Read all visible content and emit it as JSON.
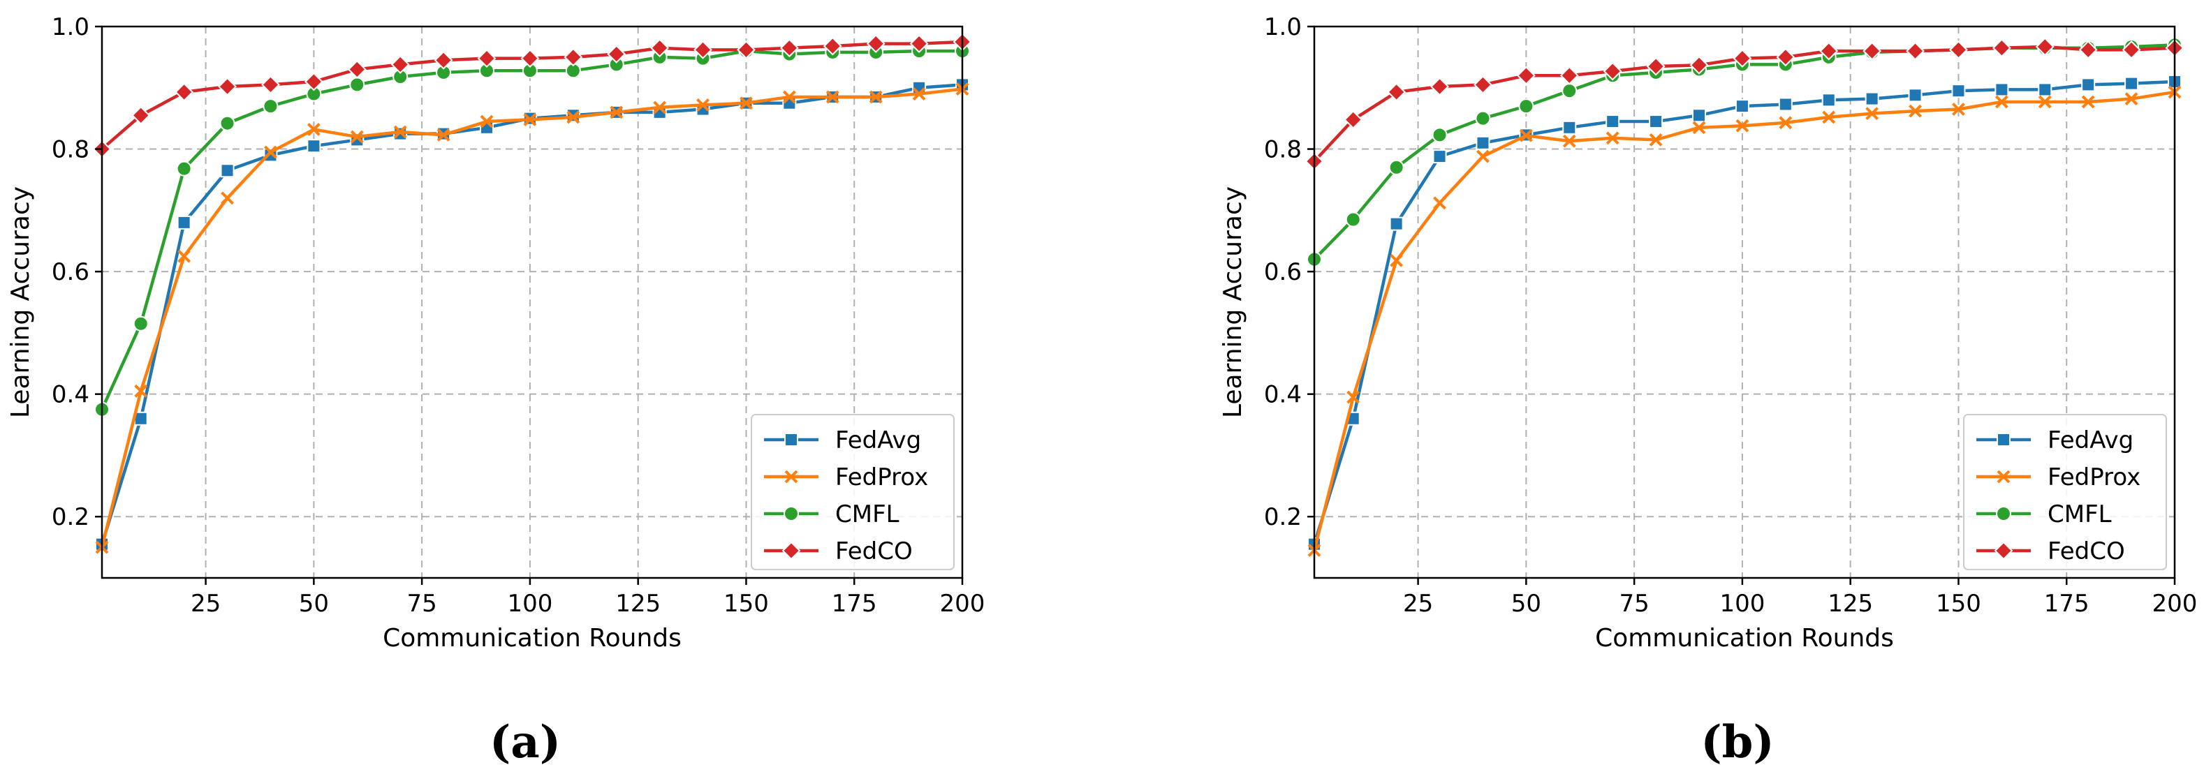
{
  "chart_data": [
    {
      "type": "line",
      "panel_label": "(a)",
      "xlabel": "Communication Rounds",
      "ylabel": "Learning Accuracy",
      "xlim": [
        1,
        200
      ],
      "ylim": [
        0.1,
        1.0
      ],
      "xticks": [
        25,
        50,
        75,
        100,
        125,
        150,
        175,
        200
      ],
      "yticks": [
        0.2,
        0.4,
        0.6,
        0.8,
        1.0
      ],
      "grid": true,
      "legend_position": "lower-right",
      "x": [
        1,
        10,
        20,
        30,
        40,
        50,
        60,
        70,
        80,
        90,
        100,
        110,
        120,
        130,
        140,
        150,
        160,
        170,
        180,
        190,
        200
      ],
      "series": [
        {
          "name": "FedAvg",
          "color": "#1f77b4",
          "marker": "square",
          "values": [
            0.155,
            0.36,
            0.68,
            0.765,
            0.79,
            0.805,
            0.815,
            0.825,
            0.825,
            0.835,
            0.85,
            0.855,
            0.86,
            0.86,
            0.865,
            0.875,
            0.875,
            0.885,
            0.885,
            0.9,
            0.905
          ]
        },
        {
          "name": "FedProx",
          "color": "#ff7f0e",
          "marker": "x",
          "values": [
            0.15,
            0.405,
            0.625,
            0.72,
            0.795,
            0.832,
            0.82,
            0.828,
            0.823,
            0.845,
            0.848,
            0.852,
            0.86,
            0.868,
            0.872,
            0.875,
            0.885,
            0.885,
            0.885,
            0.89,
            0.898
          ]
        },
        {
          "name": "CMFL",
          "color": "#2ca02c",
          "marker": "circle",
          "values": [
            0.375,
            0.515,
            0.768,
            0.842,
            0.87,
            0.89,
            0.905,
            0.918,
            0.925,
            0.928,
            0.928,
            0.928,
            0.938,
            0.95,
            0.948,
            0.96,
            0.955,
            0.958,
            0.958,
            0.96,
            0.96
          ]
        },
        {
          "name": "FedCO",
          "color": "#d62728",
          "marker": "diamond",
          "values": [
            0.8,
            0.855,
            0.893,
            0.902,
            0.905,
            0.91,
            0.93,
            0.938,
            0.945,
            0.948,
            0.948,
            0.95,
            0.955,
            0.965,
            0.962,
            0.962,
            0.965,
            0.968,
            0.972,
            0.972,
            0.975
          ]
        }
      ]
    },
    {
      "type": "line",
      "panel_label": "(b)",
      "xlabel": "Communication Rounds",
      "ylabel": "Learning Accuracy",
      "xlim": [
        1,
        200
      ],
      "ylim": [
        0.1,
        1.0
      ],
      "xticks": [
        25,
        50,
        75,
        100,
        125,
        150,
        175,
        200
      ],
      "yticks": [
        0.2,
        0.4,
        0.6,
        0.8,
        1.0
      ],
      "grid": true,
      "legend_position": "lower-right",
      "x": [
        1,
        10,
        20,
        30,
        40,
        50,
        60,
        70,
        80,
        90,
        100,
        110,
        120,
        130,
        140,
        150,
        160,
        170,
        180,
        190,
        200
      ],
      "series": [
        {
          "name": "FedAvg",
          "color": "#1f77b4",
          "marker": "square",
          "values": [
            0.155,
            0.36,
            0.678,
            0.788,
            0.81,
            0.823,
            0.835,
            0.845,
            0.845,
            0.855,
            0.87,
            0.873,
            0.88,
            0.882,
            0.888,
            0.895,
            0.897,
            0.897,
            0.905,
            0.907,
            0.91
          ]
        },
        {
          "name": "FedProx",
          "color": "#ff7f0e",
          "marker": "x",
          "values": [
            0.145,
            0.395,
            0.618,
            0.712,
            0.788,
            0.822,
            0.813,
            0.818,
            0.815,
            0.835,
            0.838,
            0.843,
            0.852,
            0.858,
            0.862,
            0.865,
            0.877,
            0.877,
            0.877,
            0.882,
            0.893
          ]
        },
        {
          "name": "CMFL",
          "color": "#2ca02c",
          "marker": "circle",
          "values": [
            0.62,
            0.685,
            0.77,
            0.823,
            0.85,
            0.87,
            0.895,
            0.92,
            0.925,
            0.93,
            0.938,
            0.938,
            0.95,
            0.958,
            0.96,
            0.962,
            0.965,
            0.965,
            0.965,
            0.967,
            0.97
          ]
        },
        {
          "name": "FedCO",
          "color": "#d62728",
          "marker": "diamond",
          "values": [
            0.78,
            0.848,
            0.893,
            0.902,
            0.905,
            0.92,
            0.92,
            0.927,
            0.935,
            0.937,
            0.948,
            0.95,
            0.96,
            0.96,
            0.96,
            0.962,
            0.965,
            0.967,
            0.962,
            0.962,
            0.965
          ]
        }
      ]
    }
  ]
}
